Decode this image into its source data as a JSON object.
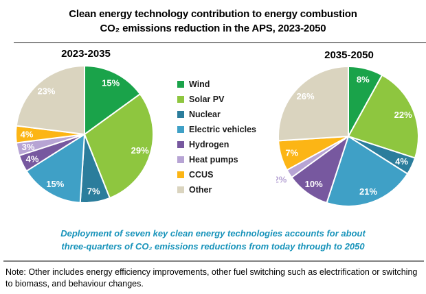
{
  "header": {
    "title_line1": "Clean energy technology contribution to energy combustion",
    "title_line2": "CO₂ emissions reduction in the APS, 2023-2050"
  },
  "legend": {
    "position": "center-between-pies",
    "items": [
      {
        "label": "Wind",
        "color": "#1aa34a"
      },
      {
        "label": "Solar PV",
        "color": "#8ec63f"
      },
      {
        "label": "Nuclear",
        "color": "#2b7d9c"
      },
      {
        "label": "Electric vehicles",
        "color": "#3fa0c6"
      },
      {
        "label": "Hydrogen",
        "color": "#77589f"
      },
      {
        "label": "Heat pumps",
        "color": "#b7a4d4"
      },
      {
        "label": "CCUS",
        "color": "#fcb515"
      },
      {
        "label": "Other",
        "color": "#dad4bf"
      }
    ]
  },
  "chart_data": [
    {
      "type": "pie",
      "title": "2023-2035",
      "categories": [
        "Wind",
        "Solar PV",
        "Nuclear",
        "Electric vehicles",
        "Hydrogen",
        "Heat pumps",
        "CCUS",
        "Other"
      ],
      "values": [
        15,
        29,
        7,
        15,
        4,
        3,
        4,
        23
      ],
      "unit": "%",
      "start_angle_deg": 0,
      "direction": "clockwise",
      "colors": [
        "#1aa34a",
        "#8ec63f",
        "#2b7d9c",
        "#3fa0c6",
        "#77589f",
        "#b7a4d4",
        "#fcb515",
        "#dad4bf"
      ],
      "slice_label_color": "#ffffff",
      "outside_labels": []
    },
    {
      "type": "pie",
      "title": "2035-2050",
      "categories": [
        "Wind",
        "Solar PV",
        "Nuclear",
        "Electric vehicles",
        "Hydrogen",
        "Heat pumps",
        "CCUS",
        "Other"
      ],
      "values": [
        8,
        22,
        4,
        21,
        10,
        2,
        7,
        26
      ],
      "unit": "%",
      "start_angle_deg": 0,
      "direction": "clockwise",
      "colors": [
        "#1aa34a",
        "#8ec63f",
        "#2b7d9c",
        "#3fa0c6",
        "#77589f",
        "#b7a4d4",
        "#fcb515",
        "#dad4bf"
      ],
      "slice_label_color": "#ffffff",
      "outside_labels": [
        {
          "index": 5,
          "radius_frac": 1.15,
          "color": "#b7a4d4"
        }
      ]
    }
  ],
  "caption": {
    "line1": "Deployment of seven key clean energy technologies accounts for about",
    "line2": "three-quarters of CO₂ emissions reductions from today through to 2050"
  },
  "note": {
    "text": "Note: Other includes energy efficiency improvements, other fuel switching such as electrification or switching to biomass, and behaviour changes."
  }
}
